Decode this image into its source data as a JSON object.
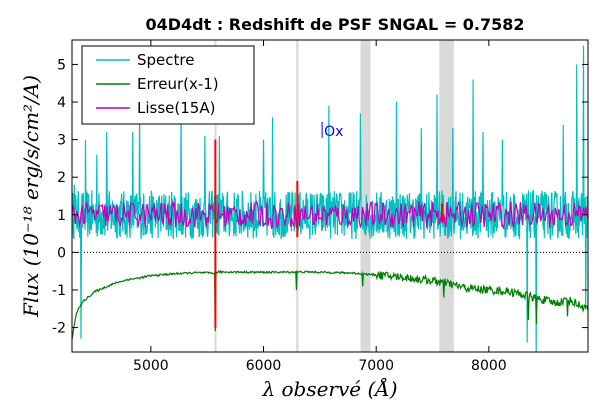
{
  "chart_data": {
    "type": "line",
    "title": "04D4dt : Redshift de PSF SNGAL = 0.7582",
    "xlabel": "λ observé (Å)",
    "ylabel": "Flux (10⁻¹⁸ erg/s/cm²/A)",
    "xlim": [
      4300,
      8880
    ],
    "ylim": [
      -2.65,
      5.65
    ],
    "x_ticks": [
      5000,
      6000,
      7000,
      8000
    ],
    "x_tick_labels": [
      "5000",
      "6000",
      "7000",
      "8000"
    ],
    "y_ticks": [
      -2,
      -1,
      0,
      1,
      2,
      3,
      4,
      5
    ],
    "y_tick_labels": [
      "-2",
      "-1",
      "0",
      "1",
      "2",
      "3",
      "4",
      "5"
    ],
    "grid": false,
    "legend": "top-left",
    "zero_line": true,
    "shaded_bands": [
      [
        5565,
        5580
      ],
      [
        6290,
        6310
      ],
      [
        6860,
        6950
      ],
      [
        7560,
        7690
      ]
    ],
    "red_segments": [
      {
        "x": [
          5560,
          5585
        ],
        "y": [
          -2.0,
          3.0
        ]
      },
      {
        "x": [
          6290,
          6310
        ],
        "y": [
          0.4,
          1.9
        ]
      },
      {
        "x": [
          7575,
          7595
        ],
        "y": [
          0.8,
          1.3
        ]
      }
    ],
    "annotations": [
      {
        "text": "Ox",
        "x": 6520,
        "y": 3.1,
        "marker": "|"
      }
    ],
    "series": [
      {
        "name": "Spectre",
        "color": "#00bfbf",
        "kind": "noisy",
        "x_range": [
          4300,
          8880
        ],
        "base": 1.0,
        "noise": 0.65,
        "spikes": [
          {
            "x": 4320,
            "y": 1.8
          },
          {
            "x": 4380,
            "y": -2.3
          },
          {
            "x": 4420,
            "y": 3.0
          },
          {
            "x": 4520,
            "y": 2.6
          },
          {
            "x": 4610,
            "y": 3.2
          },
          {
            "x": 4840,
            "y": 3.2
          },
          {
            "x": 4900,
            "y": 3.8
          },
          {
            "x": 5270,
            "y": 4.1
          },
          {
            "x": 5480,
            "y": 3.1
          },
          {
            "x": 5610,
            "y": 3.1
          },
          {
            "x": 6000,
            "y": 3.0
          },
          {
            "x": 6080,
            "y": 3.6
          },
          {
            "x": 6580,
            "y": 3.9
          },
          {
            "x": 6860,
            "y": 3.7
          },
          {
            "x": 7180,
            "y": 4.0
          },
          {
            "x": 7400,
            "y": 3.3
          },
          {
            "x": 7540,
            "y": 4.2
          },
          {
            "x": 7680,
            "y": 3.3
          },
          {
            "x": 7860,
            "y": 4.6
          },
          {
            "x": 7950,
            "y": 3.2
          },
          {
            "x": 8120,
            "y": 3.0
          },
          {
            "x": 8340,
            "y": -2.4
          },
          {
            "x": 8420,
            "y": -2.7
          },
          {
            "x": 8660,
            "y": 3.4
          },
          {
            "x": 8780,
            "y": 5.0
          },
          {
            "x": 8840,
            "y": 5.5
          },
          {
            "x": 8860,
            "y": -1.5
          }
        ]
      },
      {
        "name": "Erreur(x-1)",
        "color": "#008000",
        "kind": "error",
        "points": [
          [
            4300,
            -2.3
          ],
          [
            4340,
            -1.6
          ],
          [
            4400,
            -1.3
          ],
          [
            4500,
            -1.05
          ],
          [
            4600,
            -0.92
          ],
          [
            4700,
            -0.8
          ],
          [
            4800,
            -0.72
          ],
          [
            4900,
            -0.68
          ],
          [
            5000,
            -0.62
          ],
          [
            5200,
            -0.57
          ],
          [
            5400,
            -0.54
          ],
          [
            5560,
            -0.55
          ],
          [
            5600,
            -0.52
          ],
          [
            6000,
            -0.53
          ],
          [
            6400,
            -0.52
          ],
          [
            6800,
            -0.55
          ],
          [
            7000,
            -0.6
          ],
          [
            7200,
            -0.65
          ],
          [
            7400,
            -0.72
          ],
          [
            7600,
            -0.8
          ],
          [
            7800,
            -0.95
          ],
          [
            8000,
            -1.0
          ],
          [
            8200,
            -1.05
          ],
          [
            8400,
            -1.2
          ],
          [
            8600,
            -1.35
          ],
          [
            8700,
            -1.25
          ],
          [
            8800,
            -1.4
          ],
          [
            8880,
            -1.5
          ]
        ],
        "dips": [
          {
            "x": 5570,
            "y": -2.1
          },
          {
            "x": 6295,
            "y": -1.0
          },
          {
            "x": 6880,
            "y": -0.9
          },
          {
            "x": 7600,
            "y": -1.2
          },
          {
            "x": 8350,
            "y": -1.8
          },
          {
            "x": 8420,
            "y": -1.9
          },
          {
            "x": 8700,
            "y": -1.7
          }
        ]
      },
      {
        "name": "Lisse(15A)",
        "color": "#bf00bf",
        "kind": "smooth",
        "x_range": [
          4300,
          8880
        ],
        "base": 1.0,
        "noise": 0.35
      }
    ]
  }
}
